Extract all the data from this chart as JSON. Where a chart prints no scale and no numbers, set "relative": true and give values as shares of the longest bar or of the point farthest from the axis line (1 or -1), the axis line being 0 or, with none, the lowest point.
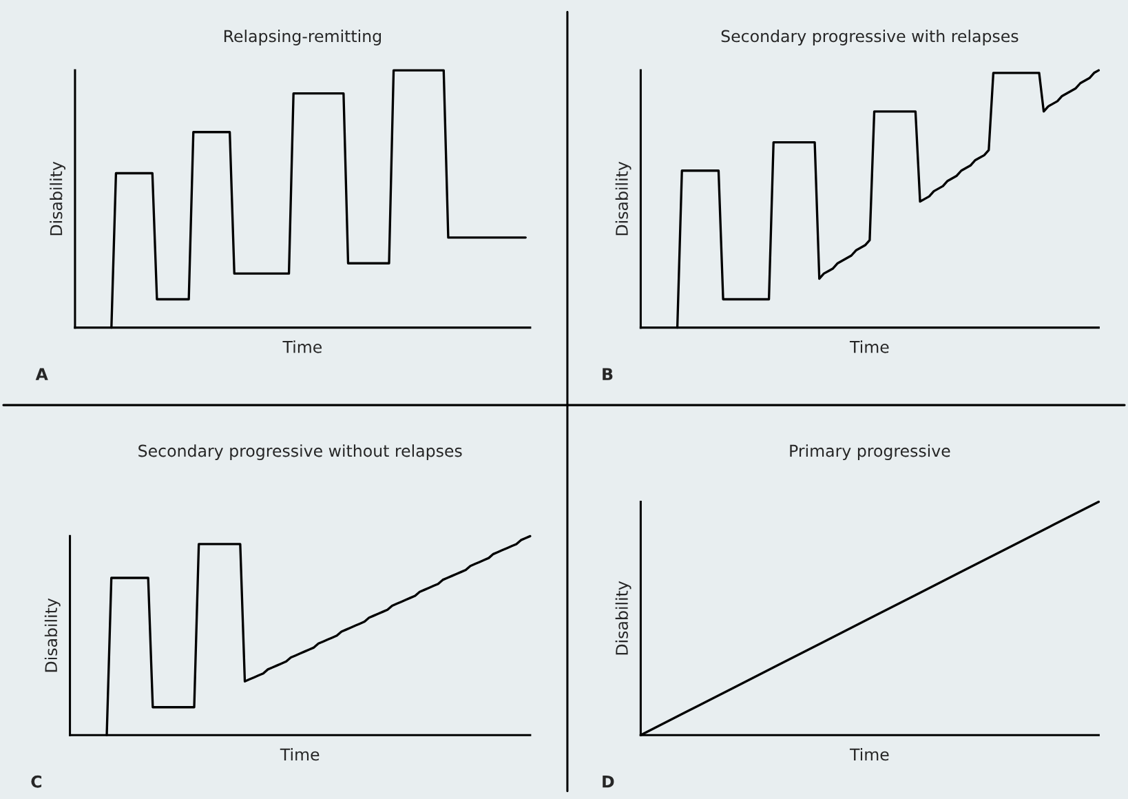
{
  "chart_data": [
    {
      "type": "line",
      "title": "Relapsing-remitting",
      "xlabel": "Time",
      "ylabel": "Disability",
      "relative": true,
      "annotations": [
        "A"
      ],
      "marker": "none",
      "line_style": "solid",
      "categories": [
        null,
        null,
        null,
        null,
        null,
        null,
        null,
        null,
        null,
        null,
        null,
        null,
        null,
        null,
        null,
        null,
        null,
        null,
        null,
        null,
        null,
        null,
        null,
        null,
        null,
        null,
        null,
        null,
        null,
        null,
        null,
        null,
        null,
        null,
        null,
        null,
        null,
        null,
        null,
        null,
        null,
        null,
        null,
        null,
        null,
        null,
        null,
        null,
        null,
        null,
        null,
        null,
        null,
        null,
        null,
        null,
        null,
        null,
        null,
        null,
        null,
        null,
        null,
        null,
        null,
        null,
        null,
        null,
        null,
        null,
        null,
        null,
        null,
        null,
        null,
        null,
        null,
        null,
        null,
        null,
        null,
        null,
        null,
        null,
        null,
        null,
        null,
        null,
        null,
        null,
        null,
        null,
        null,
        null,
        null,
        null,
        null,
        null,
        null,
        null,
        null
      ],
      "series": [
        {
          "color": "#000000",
          "values": [
            null,
            null,
            null,
            null,
            null,
            null,
            null,
            null,
            0,
            0.6,
            0.6,
            0.6,
            0.6,
            0.6,
            0.6,
            0.6,
            0.6,
            0.6,
            0.11,
            0.11,
            0.11,
            0.11,
            0.11,
            0.11,
            0.11,
            0.11,
            0.76,
            0.76,
            0.76,
            0.76,
            0.76,
            0.76,
            0.76,
            0.76,
            0.76,
            0.21,
            0.21,
            0.21,
            0.21,
            0.21,
            0.21,
            0.21,
            0.21,
            0.21,
            0.21,
            0.21,
            0.21,
            0.21,
            0.91,
            0.91,
            0.91,
            0.91,
            0.91,
            0.91,
            0.91,
            0.91,
            0.91,
            0.91,
            0.91,
            0.91,
            0.25,
            0.25,
            0.25,
            0.25,
            0.25,
            0.25,
            0.25,
            0.25,
            0.25,
            0.25,
            1,
            1,
            1,
            1,
            1,
            1,
            1,
            1,
            1,
            1,
            1,
            1,
            0.35,
            0.35,
            0.35,
            0.35,
            0.35,
            0.35,
            0.35,
            0.35,
            0.35,
            0.35,
            0.35,
            0.35,
            0.35,
            0.35,
            0.35,
            0.35,
            0.35,
            0.35,
            null
          ]
        }
      ]
    },
    {
      "type": "line",
      "title": "Secondary progressive with relapses",
      "xlabel": "Time",
      "ylabel": "Disability",
      "relative": true,
      "annotations": [
        "B"
      ],
      "marker": "none",
      "line_style": "solid",
      "categories": [
        null,
        null,
        null,
        null,
        null,
        null,
        null,
        null,
        null,
        null,
        null,
        null,
        null,
        null,
        null,
        null,
        null,
        null,
        null,
        null,
        null,
        null,
        null,
        null,
        null,
        null,
        null,
        null,
        null,
        null,
        null,
        null,
        null,
        null,
        null,
        null,
        null,
        null,
        null,
        null,
        null,
        null,
        null,
        null,
        null,
        null,
        null,
        null,
        null,
        null,
        null,
        null,
        null,
        null,
        null,
        null,
        null,
        null,
        null,
        null,
        null,
        null,
        null,
        null,
        null,
        null,
        null,
        null,
        null,
        null,
        null,
        null,
        null,
        null,
        null,
        null,
        null,
        null,
        null,
        null,
        null,
        null,
        null,
        null,
        null,
        null,
        null,
        null,
        null,
        null,
        null,
        null,
        null,
        null,
        null,
        null,
        null,
        null,
        null,
        null,
        null
      ],
      "series": [
        {
          "color": "#000000",
          "values": [
            null,
            null,
            null,
            null,
            null,
            null,
            null,
            null,
            0,
            0.61,
            0.61,
            0.61,
            0.61,
            0.61,
            0.61,
            0.61,
            0.61,
            0.61,
            0.11,
            0.11,
            0.11,
            0.11,
            0.11,
            0.11,
            0.11,
            0.11,
            0.11,
            0.11,
            0.11,
            0.72,
            0.72,
            0.72,
            0.72,
            0.72,
            0.72,
            0.72,
            0.72,
            0.72,
            0.72,
            0.19,
            0.21,
            0.22,
            0.23,
            0.25,
            0.26,
            0.27,
            0.28,
            0.3,
            0.31,
            0.32,
            0.34,
            0.84,
            0.84,
            0.84,
            0.84,
            0.84,
            0.84,
            0.84,
            0.84,
            0.84,
            0.84,
            0.49,
            0.5,
            0.51,
            0.53,
            0.54,
            0.55,
            0.57,
            0.58,
            0.59,
            0.61,
            0.62,
            0.63,
            0.65,
            0.66,
            0.67,
            0.69,
            0.99,
            0.99,
            0.99,
            0.99,
            0.99,
            0.99,
            0.99,
            0.99,
            0.99,
            0.99,
            0.99,
            0.84,
            0.86,
            0.87,
            0.88,
            0.9,
            0.91,
            0.92,
            0.93,
            0.95,
            0.96,
            0.97,
            0.99,
            1
          ]
        }
      ]
    },
    {
      "type": "line",
      "title": "Secondary progressive without relapses",
      "xlabel": "Time",
      "ylabel": "Disability",
      "relative": true,
      "annotations": [
        "C"
      ],
      "marker": "none",
      "line_style": "solid",
      "categories": [
        null,
        null,
        null,
        null,
        null,
        null,
        null,
        null,
        null,
        null,
        null,
        null,
        null,
        null,
        null,
        null,
        null,
        null,
        null,
        null,
        null,
        null,
        null,
        null,
        null,
        null,
        null,
        null,
        null,
        null,
        null,
        null,
        null,
        null,
        null,
        null,
        null,
        null,
        null,
        null,
        null,
        null,
        null,
        null,
        null,
        null,
        null,
        null,
        null,
        null,
        null,
        null,
        null,
        null,
        null,
        null,
        null,
        null,
        null,
        null,
        null,
        null,
        null,
        null,
        null,
        null,
        null,
        null,
        null,
        null,
        null,
        null,
        null,
        null,
        null,
        null,
        null,
        null,
        null,
        null,
        null,
        null,
        null,
        null,
        null,
        null,
        null,
        null,
        null,
        null,
        null,
        null,
        null,
        null,
        null,
        null,
        null,
        null,
        null,
        null,
        null
      ],
      "series": [
        {
          "color": "#000000",
          "values": [
            null,
            null,
            null,
            null,
            null,
            null,
            null,
            null,
            0,
            0.79,
            0.79,
            0.79,
            0.79,
            0.79,
            0.79,
            0.79,
            0.79,
            0.79,
            0.14,
            0.14,
            0.14,
            0.14,
            0.14,
            0.14,
            0.14,
            0.14,
            0.14,
            0.14,
            0.96,
            0.96,
            0.96,
            0.96,
            0.96,
            0.96,
            0.96,
            0.96,
            0.96,
            0.96,
            0.27,
            0.28,
            0.29,
            0.3,
            0.31,
            0.33,
            0.34,
            0.35,
            0.36,
            0.37,
            0.39,
            0.4,
            0.41,
            0.42,
            0.43,
            0.44,
            0.46,
            0.47,
            0.48,
            0.49,
            0.5,
            0.52,
            0.53,
            0.54,
            0.55,
            0.56,
            0.57,
            0.59,
            0.6,
            0.61,
            0.62,
            0.63,
            0.65,
            0.66,
            0.67,
            0.68,
            0.69,
            0.7,
            0.72,
            0.73,
            0.74,
            0.75,
            0.76,
            0.78,
            0.79,
            0.8,
            0.81,
            0.82,
            0.83,
            0.85,
            0.86,
            0.87,
            0.88,
            0.89,
            0.91,
            0.92,
            0.93,
            0.94,
            0.95,
            0.96,
            0.98,
            0.99,
            1
          ]
        }
      ]
    },
    {
      "type": "line",
      "title": "Primary progressive",
      "xlabel": "Time",
      "ylabel": "Disability",
      "relative": true,
      "annotations": [
        "D"
      ],
      "marker": "none",
      "line_style": "solid",
      "categories": [
        null,
        null,
        null,
        null,
        null,
        null,
        null,
        null,
        null,
        null,
        null
      ],
      "series": [
        {
          "color": "#000000",
          "values": [
            0,
            0.1,
            0.2,
            0.3,
            0.4,
            0.5,
            0.6,
            0.7,
            0.8,
            0.9,
            1
          ]
        }
      ]
    }
  ]
}
